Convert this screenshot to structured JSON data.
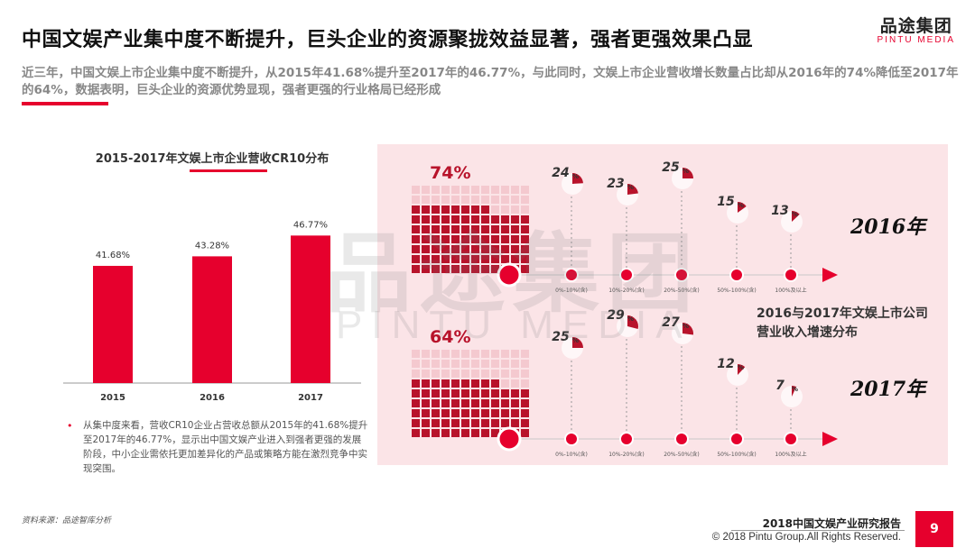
{
  "header": {
    "headline": "中国文娱产业集中度不断提升，巨头企业的资源聚拢效益显著，强者更强效果凸显",
    "summary": "近三年，中国文娱上市企业集中度不断提升，从2015年41.68%提升至2017年的46.77%，与此同时，文娱上市企业营收增长数量占比却从2016年的74%降低至2017年的64%，数据表明，巨头企业的资源优势显现，强者更强的行业格局已经形成"
  },
  "logo": {
    "cn": "品途集团",
    "en": "PINTU MEDIA"
  },
  "watermark": {
    "cn": "品途集团",
    "en": "PINTU MEDIA"
  },
  "left_chart": {
    "title": "2015-2017年文娱上市企业营收CR10分布",
    "note_bullet": "•",
    "note": "从集中度来看，营收CR10企业占营收总额从2015年的41.68%提升至2017年的46.77%，显示出中国文娱产业进入到强者更强的发展阶段，中小企业需依托更加差异化的产品或策略方能在激烈竞争中实现突围。"
  },
  "right_panel": {
    "caption_line1": "2016与2017年文娱上市公司",
    "caption_line2": "营业收入增速分布",
    "year_2016": "2016年",
    "year_2017": "2017年",
    "share_2016": "74%",
    "share_2017": "64%",
    "pct_suffix": "%",
    "categories_2016": [
      "0%-10%(含)",
      "10%-20%(含)",
      "20%-50%(含)",
      "50%-100%(含)",
      "100%及以上"
    ],
    "categories_2017": [
      "0%-10%(含)",
      "10%-20%(含)",
      "20%-50%(含)",
      "50%-100%(含)",
      "100%及以上"
    ]
  },
  "colors": {
    "accent": "#e6002d",
    "panel_bg": "#fbe4e7",
    "dark_red": "#b8132b",
    "grid_light": "#f4c9cf"
  },
  "footer": {
    "source": "资料来源：品途智库分析",
    "report_title": "2018中国文娱产业研究报告",
    "copyright": "© 2018 Pintu Group.All Rights Reserved.",
    "page": "9"
  },
  "chart_data": [
    {
      "type": "bar",
      "title": "2015-2017年文娱上市企业营收CR10分布",
      "categories": [
        "2015",
        "2016",
        "2017"
      ],
      "values": [
        41.68,
        43.28,
        46.77
      ],
      "value_labels": [
        "41.68%",
        "43.28%",
        "46.77%"
      ],
      "ylim": [
        0,
        50
      ]
    },
    {
      "type": "pie",
      "title": "2016与2017年文娱上市公司营业收入增速分布",
      "series": [
        {
          "name": "2016年",
          "categories": [
            "0%-10%(含)",
            "10%-20%(含)",
            "20%-50%(含)",
            "50%-100%(含)",
            "100%及以上"
          ],
          "values": [
            24,
            23,
            25,
            15,
            13
          ],
          "share_growth": 74
        },
        {
          "name": "2017年",
          "categories": [
            "0%-10%(含)",
            "10%-20%(含)",
            "20%-50%(含)",
            "50%-100%(含)",
            "100%及以上"
          ],
          "values": [
            25,
            29,
            27,
            12,
            7
          ],
          "share_growth": 64
        }
      ]
    }
  ]
}
